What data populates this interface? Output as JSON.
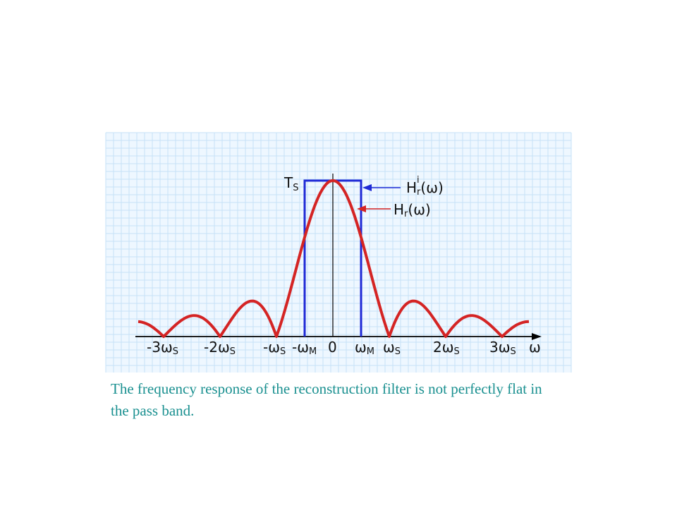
{
  "colors": {
    "grid_bg": "#eef7ff",
    "grid_line": "#c6e2f7",
    "ideal_filter": "#1f2ad6",
    "real_filter": "#d42424",
    "axis": "#000000",
    "caption": "#1a9090"
  },
  "diagram": {
    "labels": {
      "ts": "T",
      "ts_sub": "S",
      "ideal_H": "H",
      "ideal_sub": "r",
      "ideal_sup": "i",
      "ideal_arg": "(ω)",
      "real_H": "H",
      "real_sub": "r",
      "real_arg": "(ω)",
      "axis_omega": "ω"
    },
    "ticks": [
      {
        "id": "m3ws",
        "coef": "-3",
        "sym": "ω",
        "sub": "S"
      },
      {
        "id": "m2ws",
        "coef": "-2",
        "sym": "ω",
        "sub": "S"
      },
      {
        "id": "mws",
        "coef": "-",
        "sym": "ω",
        "sub": "S"
      },
      {
        "id": "mwm",
        "coef": "-",
        "sym": "ω",
        "sub": "M"
      },
      {
        "id": "zero",
        "coef": "0",
        "sym": "",
        "sub": ""
      },
      {
        "id": "wm",
        "coef": "",
        "sym": "ω",
        "sub": "M"
      },
      {
        "id": "ws",
        "coef": "",
        "sym": "ω",
        "sub": "S"
      },
      {
        "id": "2ws",
        "coef": "2",
        "sym": "ω",
        "sub": "S"
      },
      {
        "id": "3ws",
        "coef": "3",
        "sym": "ω",
        "sub": "S"
      }
    ]
  },
  "caption": {
    "text": "The frequency response of the reconstruction filter is not perfectly flat in the pass band."
  }
}
